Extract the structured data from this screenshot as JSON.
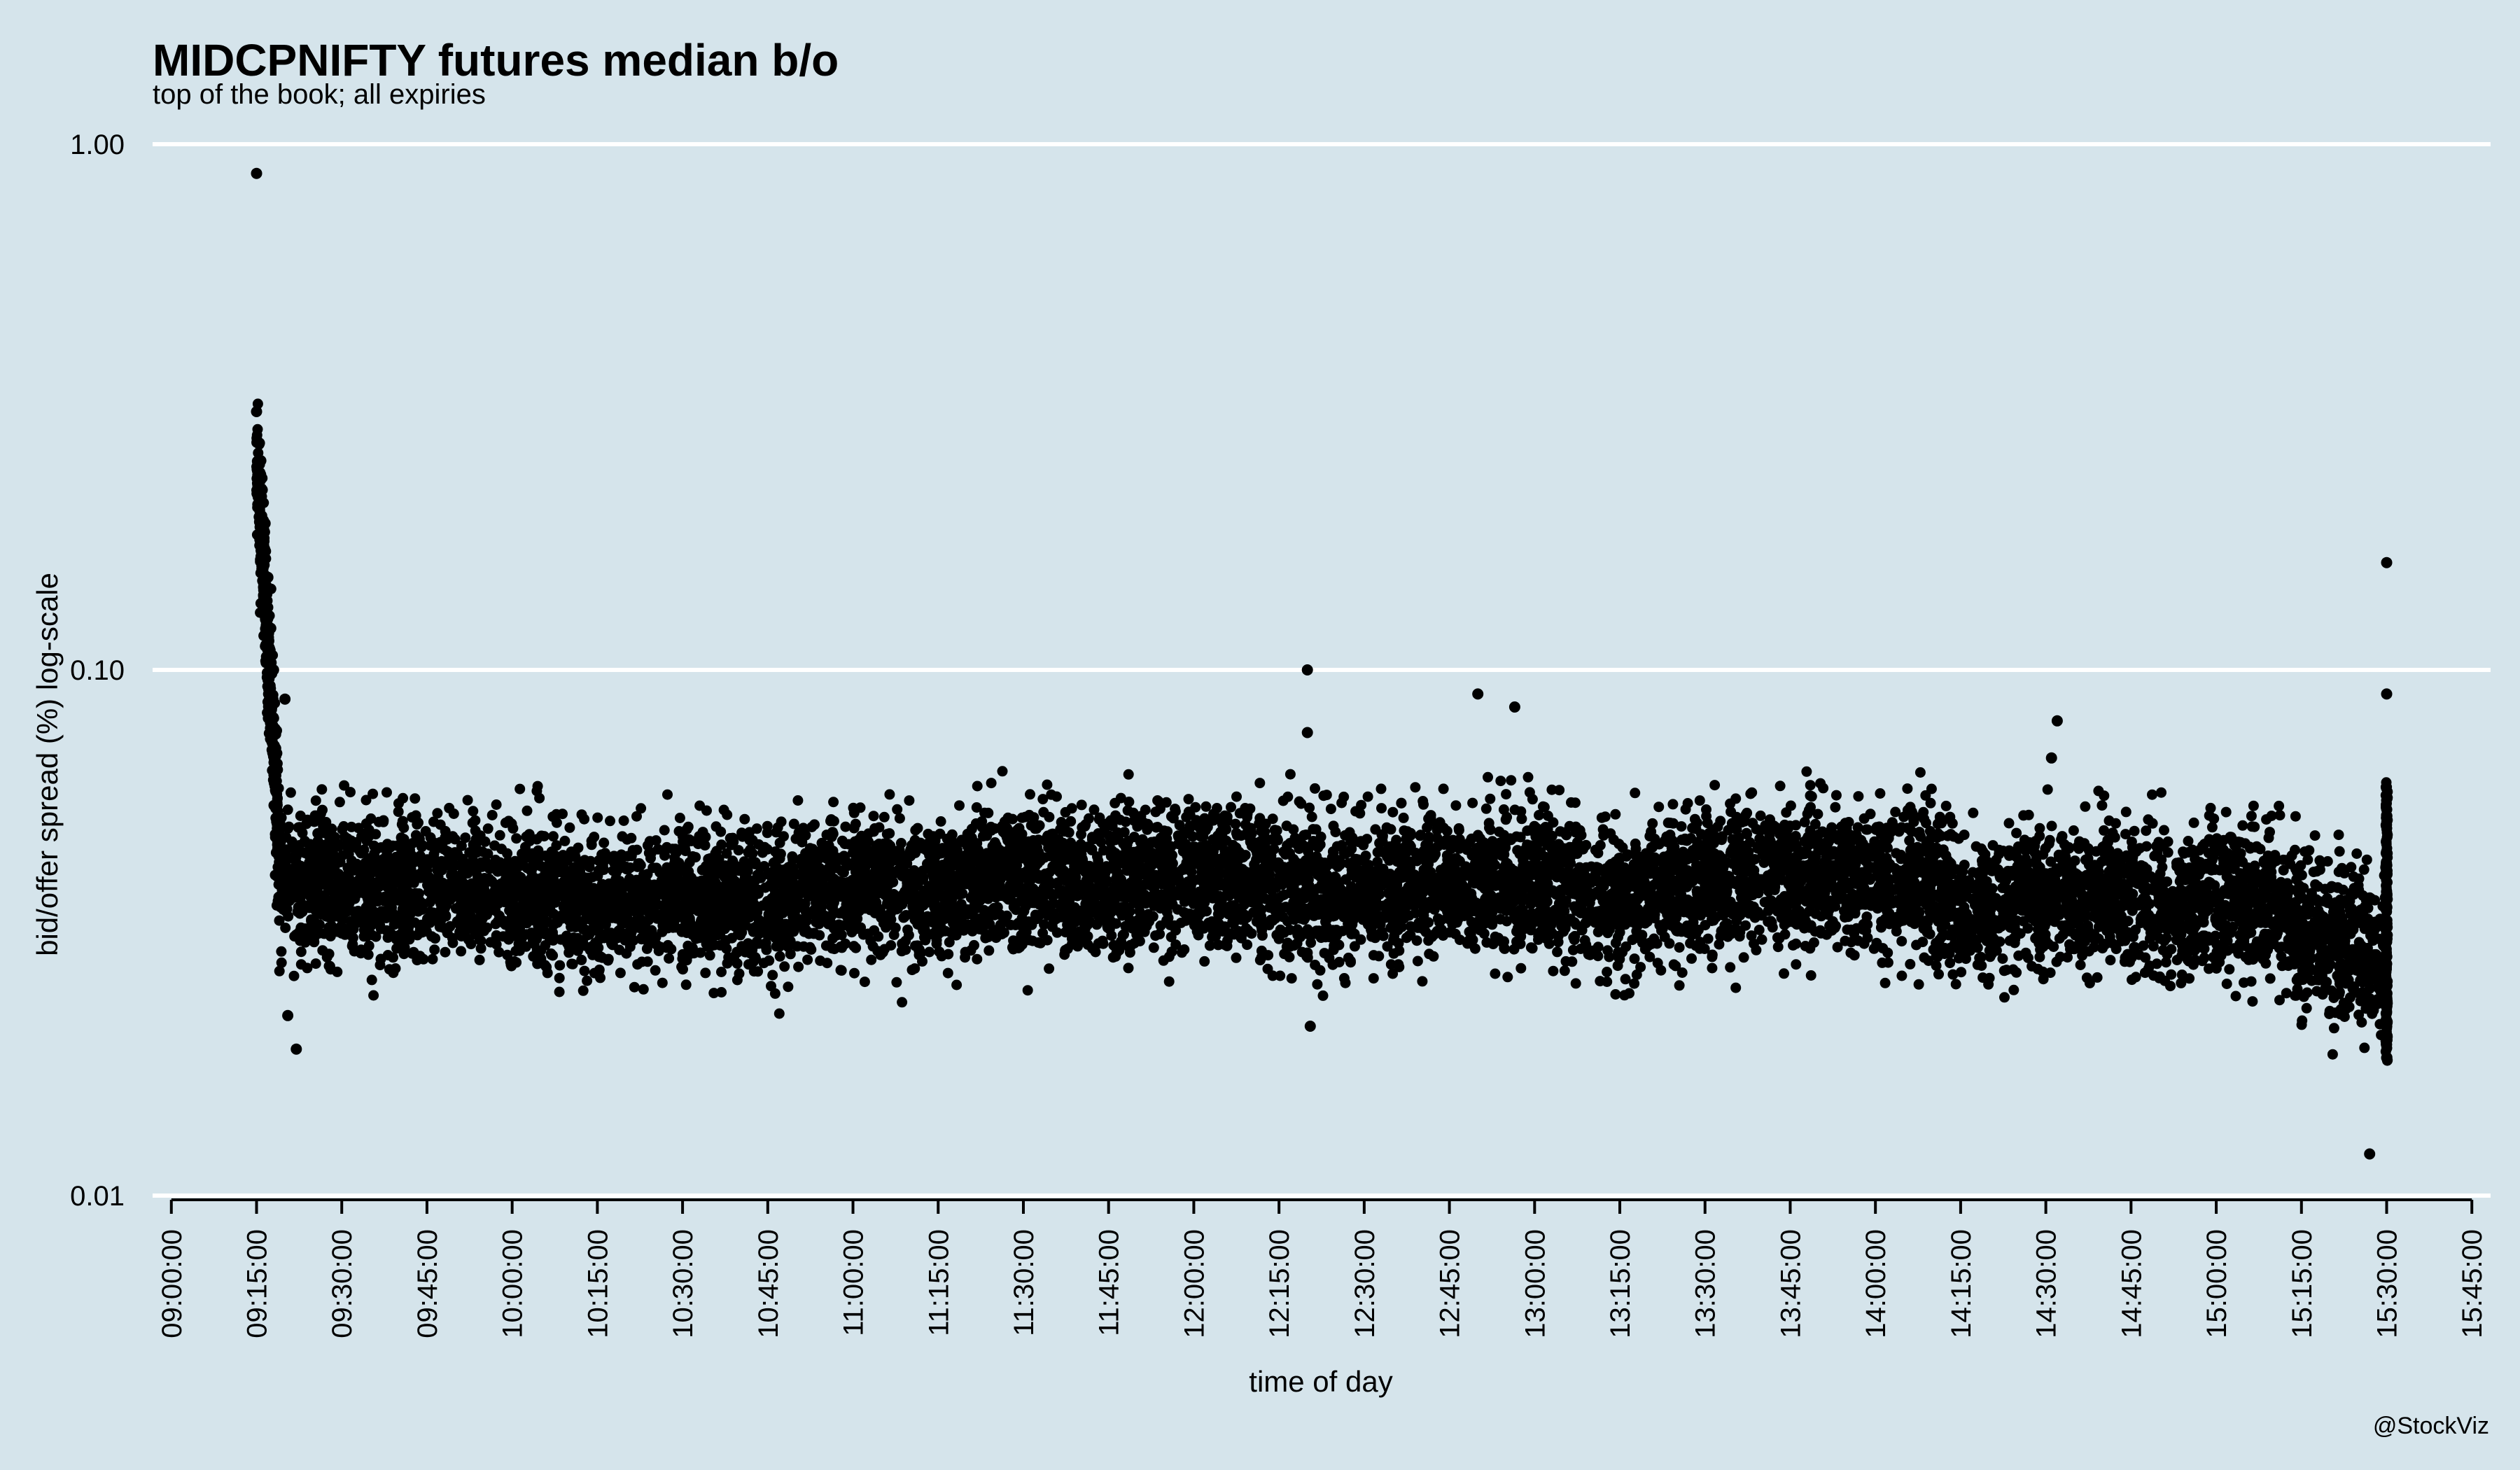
{
  "chart_data": {
    "type": "scatter",
    "title": "MIDCPNIFTY futures median b/o",
    "subtitle": "top of the book; all expiries",
    "xlabel": "time of day",
    "ylabel": "bid/offer spread (%) log-scale",
    "caption": "@StockViz",
    "y_scale": "log10",
    "ylim": [
      0.01,
      1.0
    ],
    "y_ticks": [
      "1.00",
      "0.10",
      "0.01"
    ],
    "x_range": [
      "09:00:00",
      "15:45:00"
    ],
    "x_ticks": [
      "09:00:00",
      "09:15:00",
      "09:30:00",
      "09:45:00",
      "10:00:00",
      "10:15:00",
      "10:30:00",
      "10:45:00",
      "11:00:00",
      "11:15:00",
      "11:30:00",
      "11:45:00",
      "12:00:00",
      "12:15:00",
      "12:30:00",
      "12:45:00",
      "13:00:00",
      "13:15:00",
      "13:30:00",
      "13:45:00",
      "14:00:00",
      "14:15:00",
      "14:30:00",
      "14:45:00",
      "15:00:00",
      "15:15:00",
      "15:30:00",
      "15:45:00"
    ],
    "grid": "horizontal major only",
    "background_color": "#d5e4eb",
    "grid_color": "#ffffff",
    "point_color": "#000000",
    "outliers": [
      {
        "x": "09:15:00",
        "y": 0.88
      },
      {
        "x": "09:15:00",
        "y": 0.31
      },
      {
        "x": "09:15:30",
        "y": 0.27
      },
      {
        "x": "09:15:45",
        "y": 0.25
      },
      {
        "x": "09:16:00",
        "y": 0.22
      },
      {
        "x": "09:16:30",
        "y": 0.19
      },
      {
        "x": "09:17:00",
        "y": 0.15
      },
      {
        "x": "09:17:30",
        "y": 0.12
      },
      {
        "x": "09:18:00",
        "y": 0.1
      },
      {
        "x": "09:20:00",
        "y": 0.088
      },
      {
        "x": "09:20:30",
        "y": 0.022
      },
      {
        "x": "09:22:00",
        "y": 0.019
      },
      {
        "x": "12:20:00",
        "y": 0.1
      },
      {
        "x": "12:20:00",
        "y": 0.076
      },
      {
        "x": "12:20:30",
        "y": 0.021
      },
      {
        "x": "12:50:00",
        "y": 0.09
      },
      {
        "x": "12:56:30",
        "y": 0.085
      },
      {
        "x": "14:32:00",
        "y": 0.08
      },
      {
        "x": "14:31:00",
        "y": 0.068
      },
      {
        "x": "15:27:00",
        "y": 0.012
      },
      {
        "x": "15:30:00",
        "y": 0.16
      },
      {
        "x": "15:30:00",
        "y": 0.09
      }
    ],
    "series": [
      {
        "x": [
          "09:19:00",
          "09:30:00",
          "09:45:00",
          "10:00:00",
          "10:15:00",
          "10:30:00",
          "10:45:00",
          "11:00:00",
          "11:15:00",
          "11:30:00",
          "11:45:00",
          "12:00:00",
          "12:15:00",
          "12:30:00",
          "12:45:00",
          "13:00:00",
          "13:15:00",
          "13:30:00",
          "13:45:00",
          "14:00:00",
          "14:10:00",
          "14:15:00",
          "14:30:00",
          "14:45:00",
          "15:00:00",
          "15:10:00",
          "15:15:00",
          "15:30:00"
        ],
        "median": [
          0.04,
          0.038,
          0.039,
          0.038,
          0.036,
          0.037,
          0.037,
          0.038,
          0.039,
          0.04,
          0.039,
          0.041,
          0.039,
          0.038,
          0.039,
          0.039,
          0.037,
          0.04,
          0.041,
          0.041,
          0.039,
          0.034,
          0.037,
          0.037,
          0.036,
          0.036,
          0.031,
          0.029
        ],
        "low": [
          0.026,
          0.025,
          0.026,
          0.025,
          0.023,
          0.025,
          0.024,
          0.025,
          0.026,
          0.027,
          0.026,
          0.027,
          0.024,
          0.024,
          0.026,
          0.026,
          0.024,
          0.027,
          0.027,
          0.027,
          0.024,
          0.022,
          0.024,
          0.024,
          0.023,
          0.022,
          0.019,
          0.018
        ],
        "high": [
          0.06,
          0.056,
          0.058,
          0.056,
          0.052,
          0.053,
          0.053,
          0.055,
          0.057,
          0.059,
          0.057,
          0.06,
          0.058,
          0.056,
          0.057,
          0.057,
          0.054,
          0.057,
          0.059,
          0.059,
          0.058,
          0.05,
          0.054,
          0.054,
          0.052,
          0.052,
          0.047,
          0.045
        ]
      }
    ]
  }
}
